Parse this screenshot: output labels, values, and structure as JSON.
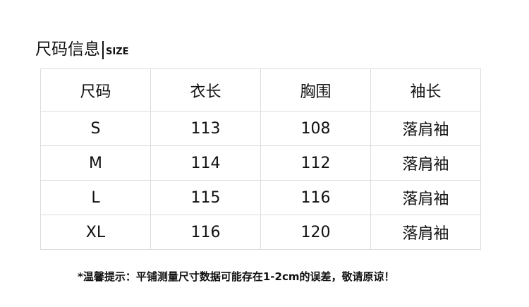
{
  "title": {
    "cn": "尺码信息",
    "en": "SIZE"
  },
  "table": {
    "headers": [
      "尺码",
      "衣长",
      "胸围",
      "袖长"
    ],
    "rows": [
      [
        "S",
        "113",
        "108",
        "落肩袖"
      ],
      [
        "M",
        "114",
        "112",
        "落肩袖"
      ],
      [
        "L",
        "115",
        "116",
        "落肩袖"
      ],
      [
        "XL",
        "116",
        "120",
        "落肩袖"
      ]
    ]
  },
  "note": "*温馨提示：平铺测量尺寸数据可能存在1-2cm的误差，敬请原谅！"
}
